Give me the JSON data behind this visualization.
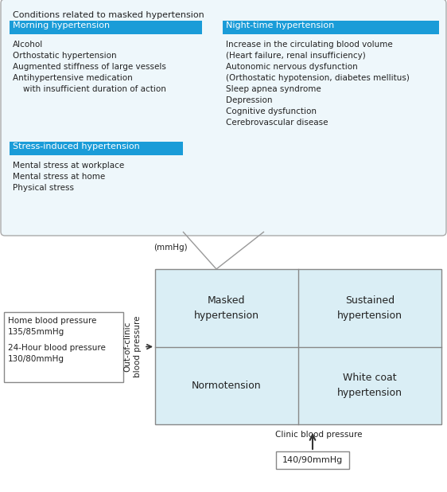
{
  "title": "Conditions related to masked hypertension",
  "top_box_bg": "#eef7fb",
  "top_box_border": "#aaaaaa",
  "header_bg": "#1a9cd8",
  "header_text_color": "#ffffff",
  "body_text_color": "#222222",
  "morning_header": "Morning hypertension",
  "morning_items": [
    "Alcohol",
    "Orthostatic hypertension",
    "Augmented stiffness of large vessels",
    "Antihypertensive medication",
    "    with insufficient duration of action"
  ],
  "stress_header": "Stress-induced hypertension",
  "stress_items": [
    "Mental stress at workplace",
    "Mental stress at home",
    "Physical stress"
  ],
  "night_header": "Night-time hypertension",
  "night_items": [
    "Increase in the circulating blood volume",
    "(Heart failure, renal insufficiency)",
    "Autonomic nervous dysfunction",
    "(Orthostatic hypotension, diabetes mellitus)",
    "Sleep apnea syndrome",
    "Depression",
    "Cognitive dysfunction",
    "Cerebrovascular disease"
  ],
  "grid_bg": "#daeef5",
  "grid_border": "#888888",
  "quadrant_labels": [
    "Masked\nhypertension",
    "Sustained\nhypertension",
    "Normotension",
    "White coat\nhypertension"
  ],
  "x_axis_label": "Clinic blood pressure",
  "y_axis_label": "Out-of-clinic\nblood pressure",
  "mmhg_label": "(mmHg)",
  "home_bp_line1": "Home blood pressure",
  "home_bp_line2": "135/85mmHg",
  "home_bp_line3": "24-Hour blood pressure",
  "home_bp_line4": "130/80mmHg",
  "bottom_label": "140/90mmHg",
  "connector_color": "#999999",
  "arrow_color": "#333333"
}
